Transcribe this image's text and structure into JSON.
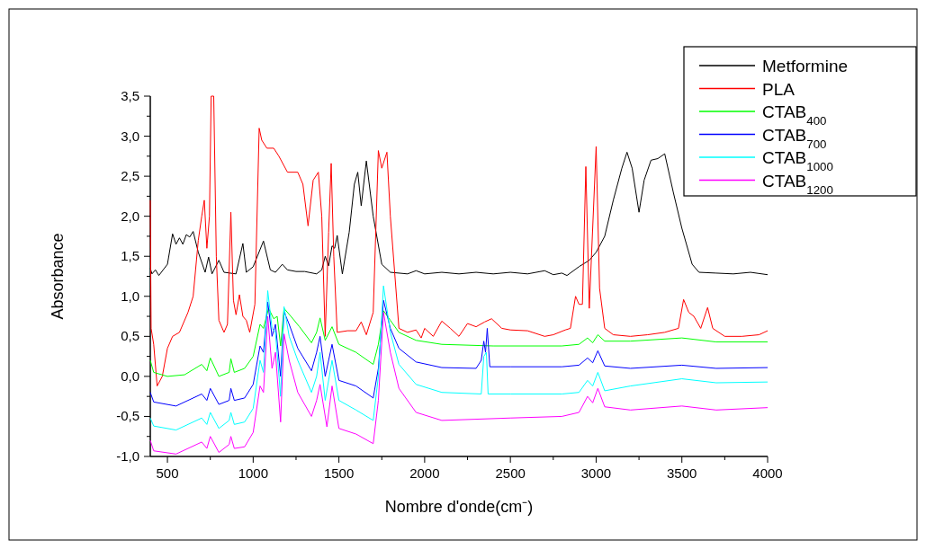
{
  "chart_data": {
    "type": "line",
    "xlabel": "Nombre d'onde(cm⁻)",
    "ylabel": "Absorbance",
    "xlim": [
      400,
      4000
    ],
    "ylim": [
      -1.0,
      3.5
    ],
    "xticks": [
      500,
      {
        "value": 750,
        "label": null
      },
      1000,
      {
        "value": 1250,
        "label": null
      },
      1500,
      {
        "value": 1750,
        "label": null
      },
      2000,
      {
        "value": 2250,
        "label": null
      },
      2500,
      {
        "value": 2750,
        "label": null
      },
      3000,
      {
        "value": 3250,
        "label": null
      },
      3500,
      {
        "value": 3750,
        "label": null
      },
      4000
    ],
    "yticks": [
      {
        "value": -1.0,
        "label": "-1,0"
      },
      {
        "value": -0.75,
        "label": null
      },
      {
        "value": -0.5,
        "label": "-0,5"
      },
      {
        "value": -0.25,
        "label": null
      },
      {
        "value": 0.0,
        "label": "0,0"
      },
      {
        "value": 0.25,
        "label": null
      },
      {
        "value": 0.5,
        "label": "0,5"
      },
      {
        "value": 0.75,
        "label": null
      },
      {
        "value": 1.0,
        "label": "1,0"
      },
      {
        "value": 1.25,
        "label": null
      },
      {
        "value": 1.5,
        "label": "1,5"
      },
      {
        "value": 1.75,
        "label": null
      },
      {
        "value": 2.0,
        "label": "2,0"
      },
      {
        "value": 2.25,
        "label": null
      },
      {
        "value": 2.5,
        "label": "2,5"
      },
      {
        "value": 2.75,
        "label": null
      },
      {
        "value": 3.0,
        "label": "3,0"
      },
      {
        "value": 3.25,
        "label": null
      },
      {
        "value": 3.5,
        "label": "3,5"
      }
    ],
    "grid": false,
    "legend": "top right",
    "marker": "none",
    "line_style": "solid",
    "series": [
      {
        "name": "Metformine",
        "color": "#000000",
        "x": [
          400,
          410,
          430,
          450,
          500,
          530,
          550,
          570,
          590,
          610,
          630,
          650,
          680,
          720,
          740,
          760,
          800,
          830,
          900,
          940,
          960,
          1000,
          1060,
          1100,
          1130,
          1170,
          1200,
          1250,
          1300,
          1370,
          1400,
          1420,
          1440,
          1460,
          1475,
          1490,
          1520,
          1560,
          1590,
          1610,
          1630,
          1660,
          1700,
          1750,
          1800,
          1900,
          1950,
          2000,
          2100,
          2200,
          2300,
          2400,
          2500,
          2600,
          2700,
          2750,
          2800,
          2830,
          2900,
          2960,
          3000,
          3050,
          3100,
          3150,
          3180,
          3210,
          3250,
          3280,
          3320,
          3360,
          3400,
          3450,
          3500,
          3560,
          3600,
          3700,
          3800,
          3900,
          4000
        ],
        "values": [
          1.35,
          1.28,
          1.33,
          1.26,
          1.4,
          1.78,
          1.65,
          1.73,
          1.65,
          1.77,
          1.74,
          1.81,
          1.55,
          1.3,
          1.49,
          1.28,
          1.45,
          1.3,
          1.28,
          1.66,
          1.3,
          1.37,
          1.69,
          1.33,
          1.3,
          1.4,
          1.33,
          1.31,
          1.31,
          1.28,
          1.33,
          1.5,
          1.38,
          1.63,
          1.6,
          1.76,
          1.28,
          1.8,
          2.4,
          2.55,
          2.13,
          2.69,
          2.0,
          1.4,
          1.3,
          1.28,
          1.32,
          1.28,
          1.3,
          1.28,
          1.3,
          1.28,
          1.3,
          1.28,
          1.32,
          1.27,
          1.29,
          1.26,
          1.37,
          1.45,
          1.55,
          1.75,
          2.2,
          2.6,
          2.8,
          2.6,
          2.05,
          2.45,
          2.7,
          2.72,
          2.78,
          2.3,
          1.85,
          1.4,
          1.3,
          1.29,
          1.28,
          1.3,
          1.27
        ]
      },
      {
        "name": "PLA",
        "color": "#ff0000",
        "x": [
          400,
          405,
          420,
          440,
          470,
          500,
          530,
          570,
          620,
          650,
          680,
          700,
          715,
          730,
          745,
          755,
          770,
          785,
          800,
          830,
          850,
          870,
          885,
          900,
          920,
          940,
          960,
          980,
          1010,
          1035,
          1050,
          1080,
          1120,
          1150,
          1200,
          1260,
          1290,
          1320,
          1350,
          1380,
          1400,
          1420,
          1440,
          1455,
          1470,
          1490,
          1550,
          1600,
          1630,
          1660,
          1700,
          1730,
          1750,
          1780,
          1800,
          1850,
          1900,
          1950,
          1980,
          2000,
          2050,
          2100,
          2150,
          2200,
          2250,
          2300,
          2350,
          2390,
          2450,
          2500,
          2600,
          2700,
          2750,
          2820,
          2850,
          2880,
          2900,
          2920,
          2940,
          2960,
          3000,
          3020,
          3050,
          3100,
          3200,
          3300,
          3400,
          3480,
          3510,
          3540,
          3570,
          3610,
          3650,
          3680,
          3750,
          3850,
          3950,
          4000
        ],
        "values": [
          2.2,
          0.6,
          0.4,
          -0.12,
          0.0,
          0.35,
          0.5,
          0.55,
          0.8,
          1.0,
          1.7,
          2.0,
          2.2,
          1.6,
          2.0,
          3.5,
          3.5,
          1.5,
          0.7,
          0.55,
          0.65,
          2.05,
          0.95,
          0.77,
          1.02,
          0.75,
          0.7,
          0.55,
          0.9,
          3.1,
          2.95,
          2.85,
          2.85,
          2.75,
          2.55,
          2.55,
          2.4,
          1.88,
          2.45,
          2.55,
          2.0,
          0.5,
          1.8,
          2.66,
          1.5,
          0.55,
          0.57,
          0.57,
          0.68,
          0.52,
          0.8,
          2.82,
          2.6,
          2.8,
          2.0,
          0.6,
          0.55,
          0.58,
          0.48,
          0.6,
          0.5,
          0.69,
          0.6,
          0.5,
          0.66,
          0.62,
          0.68,
          0.72,
          0.6,
          0.58,
          0.57,
          0.5,
          0.52,
          0.58,
          0.6,
          1.0,
          0.9,
          0.9,
          2.62,
          0.85,
          2.87,
          1.1,
          0.6,
          0.52,
          0.5,
          0.52,
          0.55,
          0.6,
          0.96,
          0.8,
          0.75,
          0.6,
          0.86,
          0.6,
          0.5,
          0.5,
          0.52,
          0.57
        ]
      },
      {
        "name": "CTAB$_{400}$",
        "color": "#00ff00",
        "x": [
          400,
          420,
          500,
          600,
          700,
          730,
          750,
          800,
          860,
          870,
          890,
          950,
          1000,
          1040,
          1060,
          1090,
          1120,
          1140,
          1160,
          1180,
          1220,
          1270,
          1340,
          1370,
          1390,
          1420,
          1460,
          1500,
          1600,
          1700,
          1730,
          1760,
          1800,
          1850,
          1950,
          2100,
          2400,
          2800,
          2900,
          2950,
          2980,
          3010,
          3050,
          3200,
          3500,
          3700,
          4000
        ],
        "values": [
          0.2,
          0.05,
          0.0,
          0.02,
          0.15,
          0.07,
          0.23,
          0.0,
          0.05,
          0.22,
          0.05,
          0.1,
          0.25,
          0.65,
          0.6,
          0.85,
          0.72,
          0.75,
          0.38,
          0.85,
          0.75,
          0.62,
          0.42,
          0.55,
          0.73,
          0.45,
          0.62,
          0.4,
          0.3,
          0.15,
          0.4,
          0.82,
          0.7,
          0.55,
          0.45,
          0.4,
          0.38,
          0.38,
          0.4,
          0.48,
          0.42,
          0.52,
          0.44,
          0.44,
          0.48,
          0.43,
          0.43
        ]
      },
      {
        "name": "CTAB$_{700}$",
        "color": "#0000ff",
        "x": [
          400,
          420,
          550,
          700,
          730,
          750,
          800,
          860,
          870,
          890,
          950,
          1000,
          1040,
          1060,
          1085,
          1110,
          1130,
          1160,
          1180,
          1210,
          1260,
          1340,
          1370,
          1390,
          1420,
          1460,
          1500,
          1600,
          1700,
          1730,
          1760,
          1800,
          1850,
          1950,
          2100,
          2300,
          2330,
          2345,
          2355,
          2365,
          2380,
          2500,
          2800,
          2900,
          2950,
          2980,
          3010,
          3050,
          3200,
          3500,
          3700,
          4000
        ],
        "values": [
          -0.2,
          -0.32,
          -0.37,
          -0.22,
          -0.3,
          -0.15,
          -0.35,
          -0.3,
          -0.15,
          -0.3,
          -0.27,
          -0.1,
          0.38,
          0.3,
          0.93,
          0.5,
          0.65,
          0.0,
          0.81,
          0.65,
          0.35,
          0.07,
          0.3,
          0.5,
          0.0,
          0.4,
          -0.05,
          -0.12,
          -0.27,
          0.1,
          0.95,
          0.6,
          0.35,
          0.18,
          0.11,
          0.1,
          0.2,
          0.44,
          0.3,
          0.6,
          0.12,
          0.12,
          0.12,
          0.14,
          0.23,
          0.17,
          0.32,
          0.13,
          0.1,
          0.14,
          0.1,
          0.11
        ]
      },
      {
        "name": "CTAB$_{1000}$",
        "color": "#00ffff",
        "x": [
          400,
          420,
          550,
          700,
          730,
          750,
          800,
          860,
          870,
          890,
          950,
          1000,
          1040,
          1060,
          1085,
          1110,
          1130,
          1160,
          1180,
          1210,
          1260,
          1340,
          1370,
          1390,
          1420,
          1460,
          1500,
          1600,
          1700,
          1730,
          1760,
          1800,
          1850,
          1950,
          2100,
          2330,
          2345,
          2360,
          2370,
          2500,
          2800,
          2900,
          2950,
          2980,
          3010,
          3050,
          3200,
          3500,
          3700,
          4000
        ],
        "values": [
          -0.52,
          -0.62,
          -0.67,
          -0.52,
          -0.6,
          -0.45,
          -0.65,
          -0.55,
          -0.45,
          -0.6,
          -0.57,
          -0.4,
          0.2,
          0.05,
          1.07,
          0.6,
          0.55,
          -0.25,
          0.87,
          0.5,
          0.2,
          -0.2,
          0.0,
          0.3,
          -0.3,
          0.2,
          -0.3,
          -0.42,
          -0.55,
          0.0,
          1.13,
          0.55,
          0.15,
          -0.1,
          -0.2,
          -0.22,
          0.25,
          0.3,
          -0.22,
          -0.22,
          -0.22,
          -0.2,
          -0.05,
          -0.12,
          0.05,
          -0.18,
          -0.12,
          -0.03,
          -0.08,
          -0.07
        ]
      },
      {
        "name": "CTAB$_{1200}$",
        "color": "#ff00ff",
        "x": [
          400,
          420,
          550,
          700,
          730,
          750,
          800,
          860,
          870,
          890,
          950,
          1000,
          1040,
          1060,
          1085,
          1110,
          1130,
          1160,
          1180,
          1210,
          1260,
          1340,
          1370,
          1390,
          1430,
          1460,
          1500,
          1600,
          1700,
          1730,
          1760,
          1800,
          1850,
          1950,
          2100,
          2500,
          2800,
          2900,
          2950,
          2980,
          3010,
          3050,
          3200,
          3500,
          3700,
          4000
        ],
        "values": [
          -0.8,
          -0.93,
          -0.97,
          -0.82,
          -0.9,
          -0.75,
          -0.95,
          -0.85,
          -0.75,
          -0.9,
          -0.88,
          -0.7,
          -0.12,
          -0.2,
          0.75,
          0.1,
          0.3,
          -0.57,
          0.53,
          0.2,
          -0.2,
          -0.5,
          -0.3,
          -0.1,
          -0.63,
          -0.12,
          -0.65,
          -0.72,
          -0.84,
          -0.3,
          0.8,
          0.3,
          -0.15,
          -0.45,
          -0.55,
          -0.52,
          -0.5,
          -0.45,
          -0.25,
          -0.33,
          -0.15,
          -0.38,
          -0.42,
          -0.37,
          -0.42,
          -0.39
        ]
      }
    ]
  }
}
